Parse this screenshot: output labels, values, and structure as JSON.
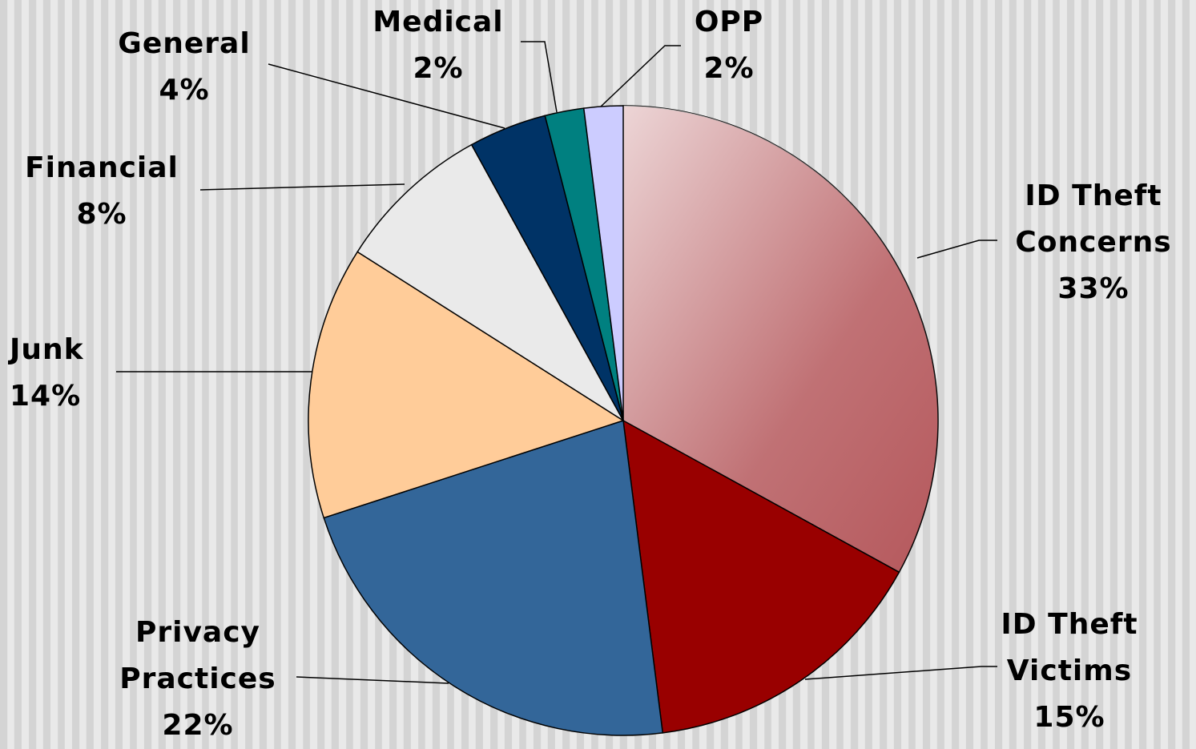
{
  "chart_data": {
    "type": "pie",
    "categories": [
      "ID Theft Concerns",
      "ID Theft Victims",
      "Privacy Practices",
      "Junk",
      "Financial",
      "General",
      "Medical",
      "OPP"
    ],
    "values": [
      33,
      15,
      22,
      14,
      8,
      4,
      2,
      2
    ],
    "value_labels": [
      "33%",
      "15%",
      "22%",
      "14%",
      "8%",
      "4%",
      "2%",
      "2%"
    ],
    "colors": [
      "#b5585c",
      "#990000",
      "#336699",
      "#ffcc99",
      "#eaeaea",
      "#003366",
      "#008080",
      "#ccccff"
    ]
  }
}
